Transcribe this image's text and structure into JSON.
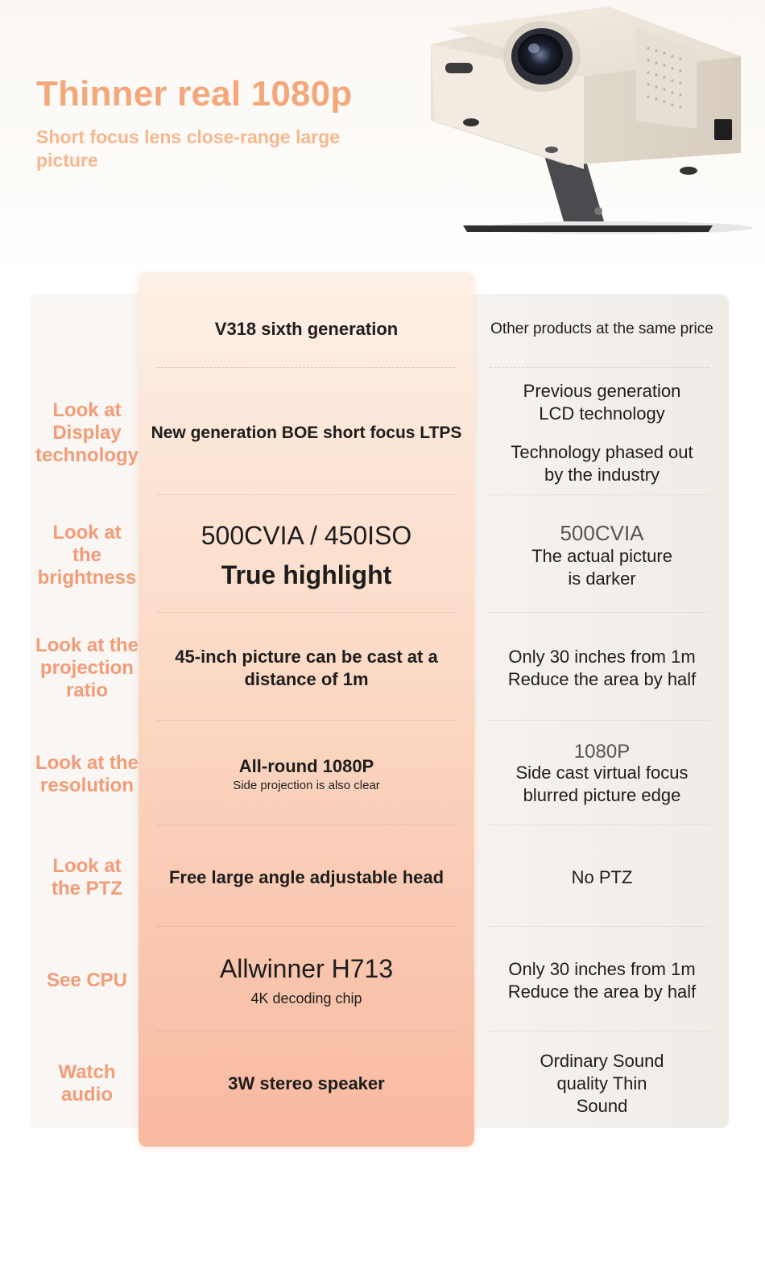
{
  "hero": {
    "title": "Thinner real 1080p",
    "subtitle": "Short focus lens close-range large picture"
  },
  "table": {
    "header_main": "V318 sixth generation",
    "header_comp": "Other products at the same price",
    "rows": [
      {
        "label": "Look at Display technology",
        "main": "New generation BOE short focus LTPS",
        "comp_1": "Previous generation LCD technology",
        "comp_2": "Technology phased out by the industry"
      },
      {
        "label": "Look at the brightness",
        "main_1": "500CVIA / 450ISO",
        "main_2": "True highlight",
        "comp_1": "500CVIA",
        "comp_2": "The actual picture is darker"
      },
      {
        "label": "Look at the projection ratio",
        "main": "45-inch picture can be cast at a distance of 1m",
        "comp": "Only 30 inches from 1m Reduce the area by half"
      },
      {
        "label": "Look at the resolution",
        "main_1": "All-round 1080P",
        "main_2": "Side projection is also clear",
        "comp_1": "1080P",
        "comp_2": "Side cast virtual focus blurred picture edge"
      },
      {
        "label": "Look at the PTZ",
        "main": "Free large angle adjustable head",
        "comp": "No PTZ"
      },
      {
        "label": "See CPU",
        "main_1": "Allwinner H713",
        "main_2": "4K decoding chip",
        "comp": "Only 30 inches from 1m Reduce the area by half"
      },
      {
        "label": "Watch audio",
        "main": "3W stereo speaker",
        "comp": "Ordinary Sound quality Thin Sound"
      }
    ]
  },
  "colors": {
    "accent": "#f4a77b",
    "label": "#f29c78",
    "main_top": "#fdf0e6",
    "main_bottom": "#f8b9a0"
  }
}
